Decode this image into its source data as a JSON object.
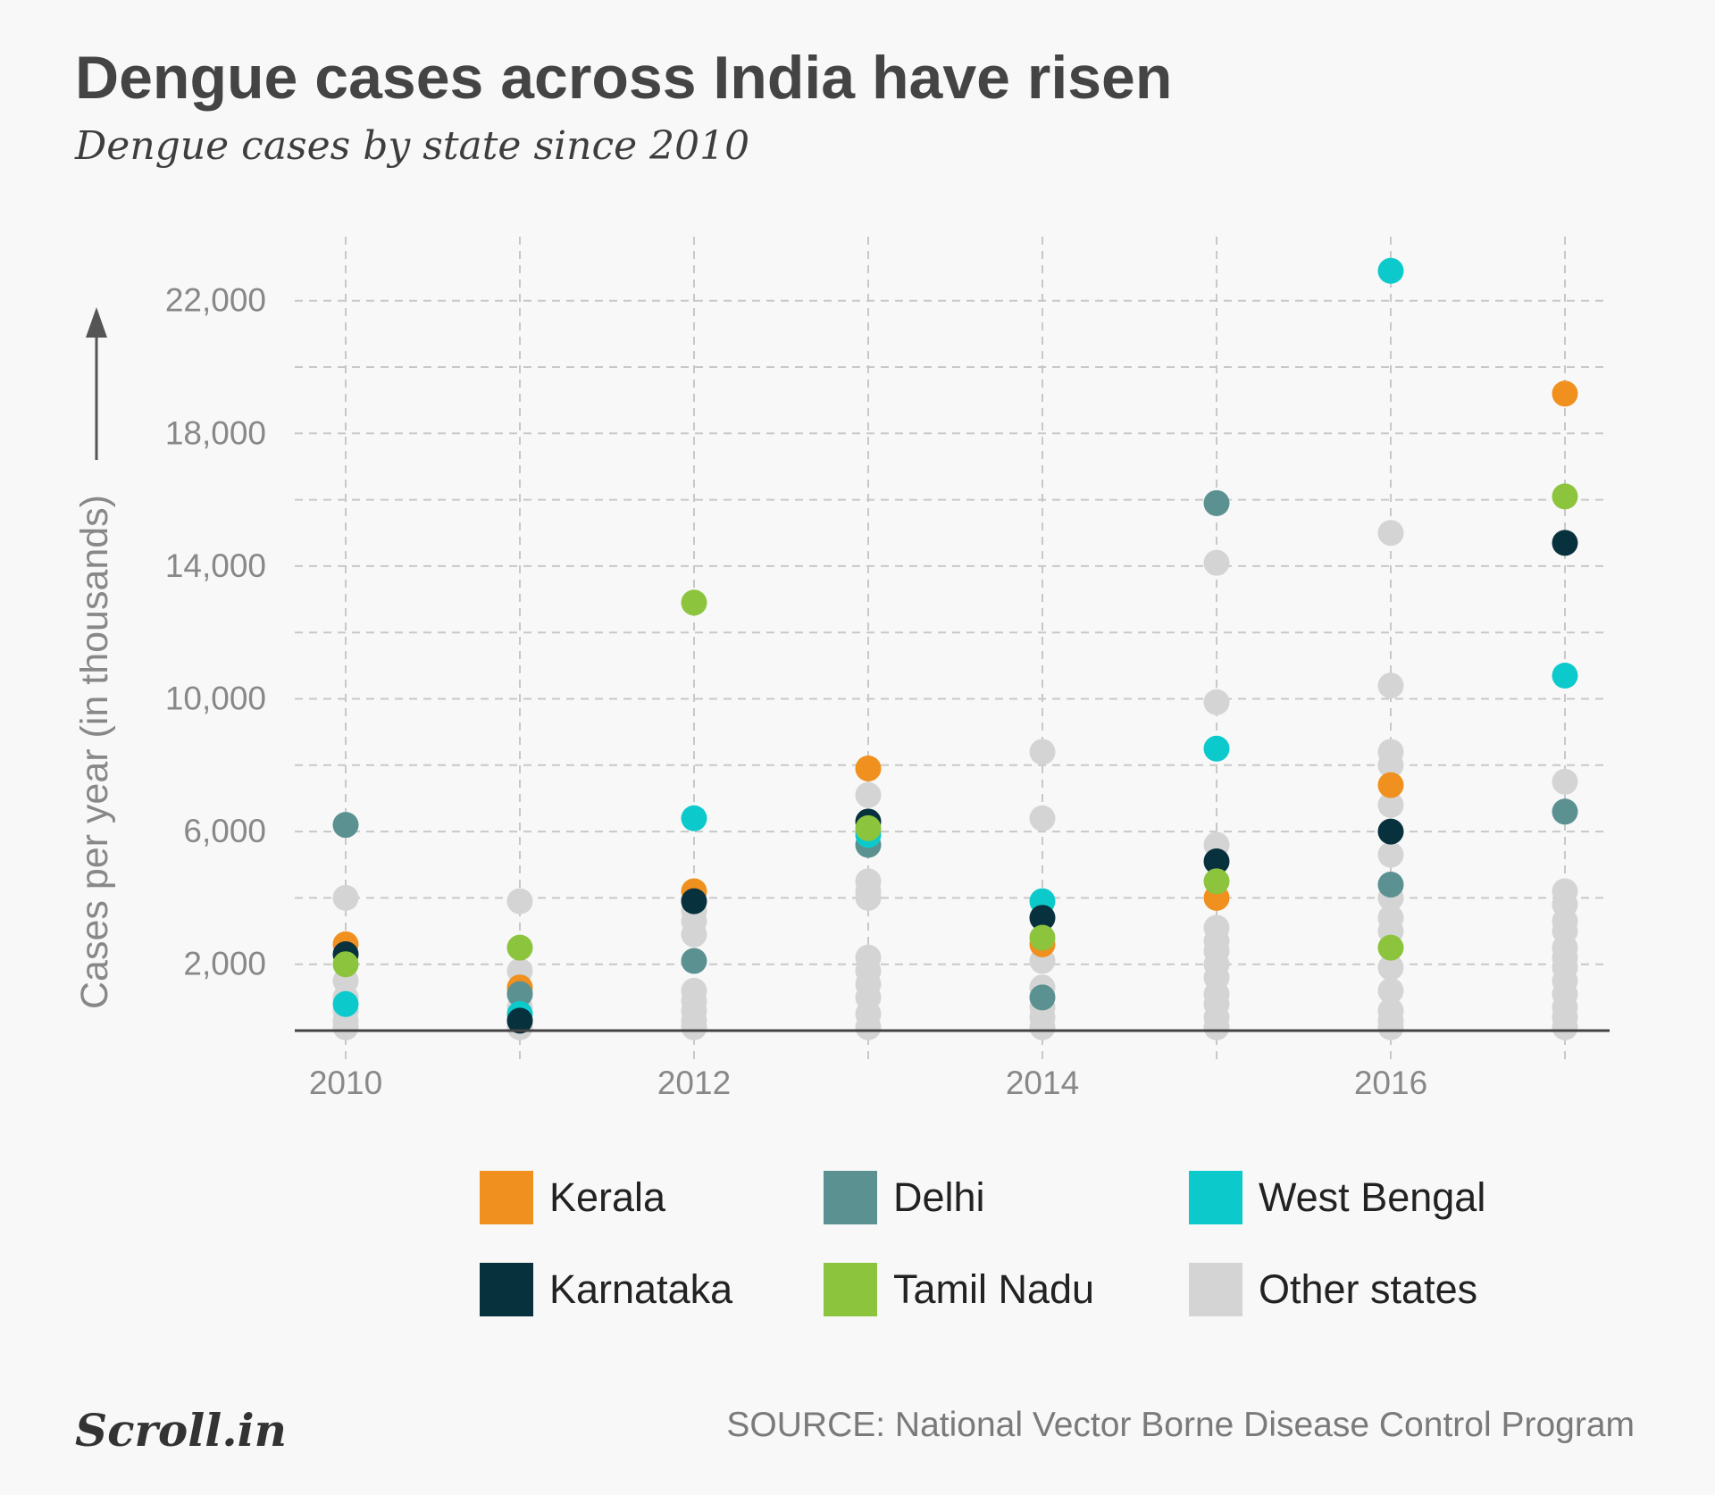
{
  "title": "Dengue cases across India have risen",
  "subtitle": "Dengue cases by state since 2010",
  "source": "SOURCE: National Vector Borne Disease Control Program",
  "logo": "Scroll.in",
  "chart_data": {
    "type": "scatter",
    "ylabel": "Cases per year (in thousands)",
    "xlabel": "",
    "x": [
      2010,
      2011,
      2012,
      2013,
      2014,
      2015,
      2016,
      2017
    ],
    "x_ticks": [
      "2010",
      "2012",
      "2014",
      "2016"
    ],
    "y_ticks": [
      "2,000",
      "6,000",
      "10,000",
      "14,000",
      "18,000",
      "22,000"
    ],
    "ylim": [
      0,
      22000
    ],
    "grid": true,
    "legend_position": "bottom",
    "series": [
      {
        "name": "Kerala",
        "color": "#f0901e",
        "values": [
          2600,
          1300,
          4200,
          7900,
          2600,
          4000,
          7400,
          19200
        ]
      },
      {
        "name": "Delhi",
        "color": "#5b9191",
        "values": [
          6200,
          1100,
          2100,
          5600,
          1000,
          15900,
          4400,
          6600
        ]
      },
      {
        "name": "West Bengal",
        "color": "#0ccacc",
        "values": [
          800,
          500,
          6400,
          5900,
          3900,
          8500,
          22900,
          10700
        ]
      },
      {
        "name": "Karnataka",
        "color": "#07313d",
        "values": [
          2300,
          300,
          3900,
          6300,
          3400,
          5100,
          6000,
          14700
        ]
      },
      {
        "name": "Tamil Nadu",
        "color": "#8cc43d",
        "values": [
          2000,
          2500,
          12900,
          6100,
          2800,
          4500,
          2500,
          16100
        ]
      },
      {
        "name": "Other states",
        "color": "#d4d4d4",
        "values": [
          [
            4000,
            1500,
            1000,
            600,
            300,
            100
          ],
          [
            3900,
            1800,
            1200,
            700,
            300,
            100
          ],
          [
            3600,
            3300,
            2900,
            1200,
            900,
            600,
            300,
            100
          ],
          [
            7100,
            4500,
            4200,
            4000,
            2200,
            1800,
            1400,
            1000,
            500,
            100
          ],
          [
            8400,
            6400,
            2100,
            1300,
            700,
            400,
            100
          ],
          [
            14100,
            9900,
            5600,
            3100,
            2700,
            2400,
            2000,
            1600,
            1100,
            800,
            400,
            100
          ],
          [
            15000,
            10400,
            8400,
            8000,
            6800,
            5300,
            4000,
            3400,
            3000,
            1900,
            1200,
            600,
            300,
            100
          ],
          [
            7500,
            4200,
            3800,
            3300,
            3000,
            2500,
            2200,
            1900,
            1500,
            1100,
            700,
            400,
            100
          ]
        ]
      }
    ]
  }
}
